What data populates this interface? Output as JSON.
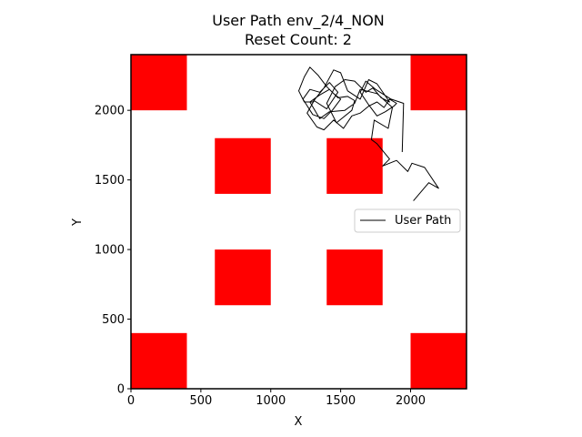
{
  "chart_data": {
    "type": "line",
    "title": "User Path env_2/4_NON",
    "subtitle": "Reset Count: 2",
    "xlabel": "X",
    "ylabel": "Y",
    "xlim": [
      0,
      2400
    ],
    "ylim": [
      0,
      2400
    ],
    "xticks": [
      0,
      500,
      1000,
      1500,
      2000
    ],
    "yticks": [
      0,
      500,
      1000,
      1500,
      2000
    ],
    "grid": false,
    "legend": {
      "placement": "right",
      "entries": [
        "User Path"
      ]
    },
    "obstacles": [
      {
        "x": 0,
        "y": 2000,
        "w": 400,
        "h": 400
      },
      {
        "x": 2000,
        "y": 2000,
        "w": 400,
        "h": 400
      },
      {
        "x": 600,
        "y": 1400,
        "w": 400,
        "h": 400
      },
      {
        "x": 1400,
        "y": 1400,
        "w": 400,
        "h": 400
      },
      {
        "x": 600,
        "y": 600,
        "w": 400,
        "h": 400
      },
      {
        "x": 1400,
        "y": 600,
        "w": 400,
        "h": 400
      },
      {
        "x": 0,
        "y": 0,
        "w": 400,
        "h": 400
      },
      {
        "x": 2000,
        "y": 0,
        "w": 400,
        "h": 400
      }
    ],
    "obstacle_color": "#ff0000",
    "series": [
      {
        "name": "User Path",
        "color": "#000000",
        "x": [
          2020,
          2130,
          2200,
          2100,
          2010,
          1980,
          1900,
          1800,
          1850,
          1760,
          1720,
          1740,
          1840,
          1870,
          1760,
          1640,
          1600,
          1530,
          1420,
          1350,
          1280,
          1350,
          1420,
          1480,
          1550,
          1600,
          1580,
          1470,
          1400,
          1460,
          1530,
          1600,
          1680,
          1730,
          1790,
          1850,
          1760,
          1700,
          1640,
          1550,
          1500,
          1450,
          1380,
          1300,
          1240,
          1200,
          1240,
          1280,
          1340,
          1400,
          1450,
          1500,
          1440,
          1380,
          1300,
          1230,
          1280,
          1350,
          1420,
          1480,
          1400,
          1310,
          1260,
          1330,
          1380,
          1450,
          1520,
          1580,
          1640,
          1700,
          1760,
          1810,
          1850,
          1900,
          1880,
          1820,
          1760,
          1700,
          1640,
          1680,
          1750,
          1860,
          1950,
          1940
        ],
        "y": [
          1350,
          1480,
          1440,
          1590,
          1620,
          1560,
          1640,
          1600,
          1650,
          1760,
          1790,
          1930,
          1870,
          2020,
          2120,
          2150,
          2050,
          2000,
          1990,
          1940,
          2060,
          2110,
          2150,
          2090,
          2100,
          2070,
          2000,
          1910,
          2050,
          2170,
          2220,
          2210,
          2130,
          2160,
          2090,
          2060,
          2190,
          2220,
          2080,
          2140,
          2270,
          2290,
          2160,
          2060,
          2060,
          2140,
          2240,
          2310,
          2250,
          2170,
          2120,
          2080,
          2000,
          1940,
          1970,
          2080,
          2150,
          2130,
          2200,
          2130,
          2010,
          2070,
          1980,
          1880,
          1860,
          1930,
          1870,
          1960,
          1980,
          2030,
          2060,
          2020,
          2080,
          2050,
          2030,
          1990,
          1960,
          2040,
          2130,
          2210,
          2150,
          2080,
          2050,
          1700
        ]
      }
    ]
  }
}
